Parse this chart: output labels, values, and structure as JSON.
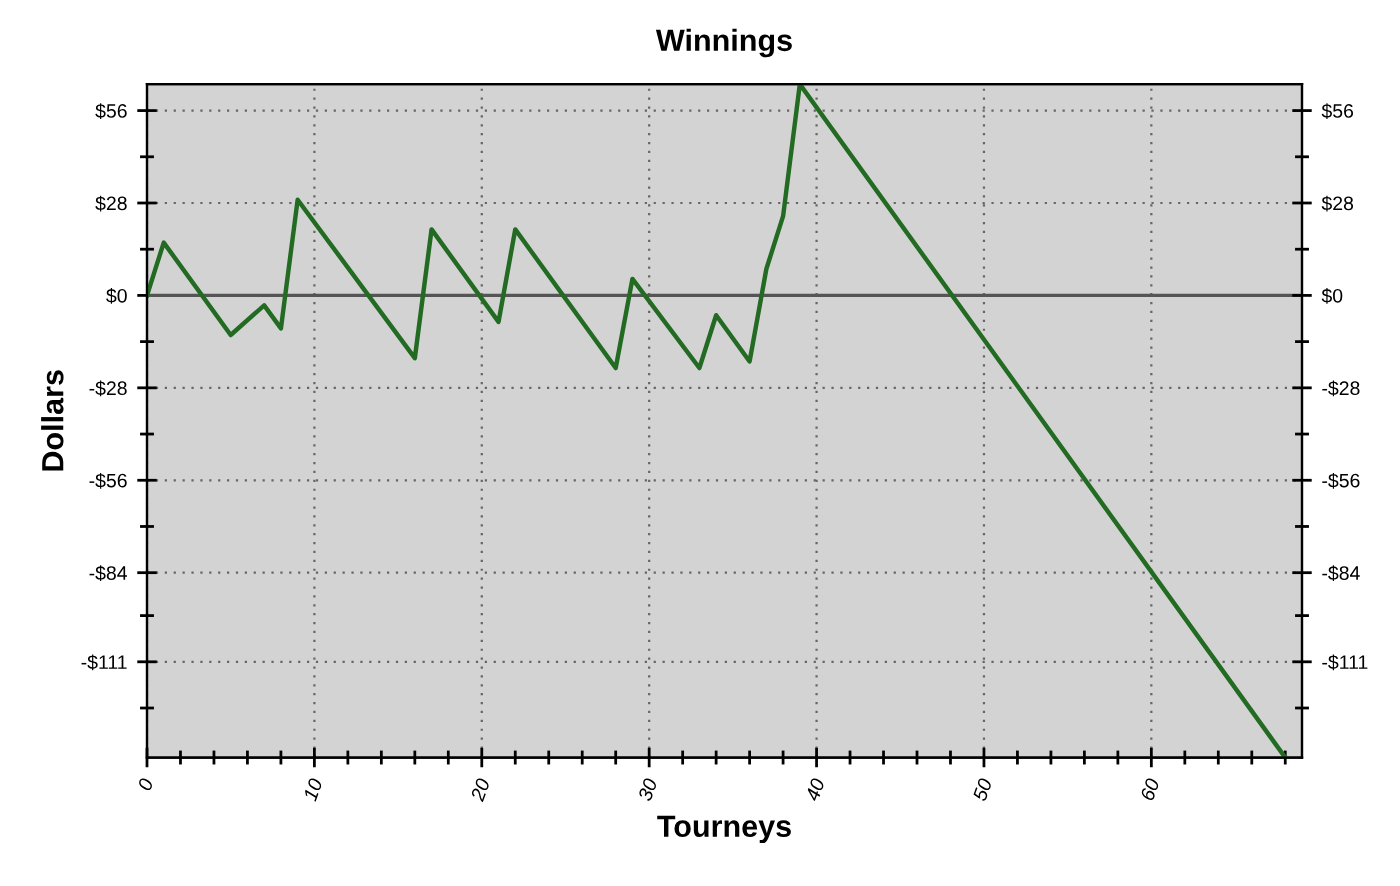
{
  "chart_data": {
    "type": "line",
    "title": "Winnings",
    "xlabel": "Tourneys",
    "ylabel": "Dollars",
    "x": [
      0,
      1,
      5,
      7,
      8,
      9,
      16,
      17,
      21,
      22,
      28,
      29,
      33,
      34,
      36,
      37,
      38,
      39,
      68
    ],
    "series": [
      {
        "color": "#236b23",
        "values": [
          0,
          16,
          -12,
          -3,
          -10,
          29,
          -19,
          20,
          -8,
          20,
          -22,
          5,
          -22,
          -6,
          -20,
          8,
          24,
          64,
          -140
        ]
      }
    ],
    "xlim": [
      0,
      69
    ],
    "xticks": [
      0,
      {
        "value": 2,
        "label": null
      },
      {
        "value": 4,
        "label": null
      },
      {
        "value": 6,
        "label": null
      },
      {
        "value": 8,
        "label": null
      },
      10,
      {
        "value": 12,
        "label": null
      },
      {
        "value": 14,
        "label": null
      },
      {
        "value": 16,
        "label": null
      },
      {
        "value": 18,
        "label": null
      },
      20,
      {
        "value": 22,
        "label": null
      },
      {
        "value": 24,
        "label": null
      },
      {
        "value": 26,
        "label": null
      },
      {
        "value": 28,
        "label": null
      },
      30,
      {
        "value": 32,
        "label": null
      },
      {
        "value": 34,
        "label": null
      },
      {
        "value": 36,
        "label": null
      },
      {
        "value": 38,
        "label": null
      },
      40,
      {
        "value": 42,
        "label": null
      },
      {
        "value": 44,
        "label": null
      },
      {
        "value": 46,
        "label": null
      },
      {
        "value": 48,
        "label": null
      },
      50,
      {
        "value": 52,
        "label": null
      },
      {
        "value": 54,
        "label": null
      },
      {
        "value": 56,
        "label": null
      },
      {
        "value": 58,
        "label": null
      },
      60,
      {
        "value": 62,
        "label": null
      },
      {
        "value": 64,
        "label": null
      },
      {
        "value": 66,
        "label": null
      },
      {
        "value": 68,
        "label": null
      }
    ],
    "ylim": [
      -140,
      64
    ],
    "yticks": [
      {
        "value": 56,
        "label": "$56"
      },
      {
        "value": 42,
        "label": null
      },
      {
        "value": 28,
        "label": "$28"
      },
      {
        "value": 14,
        "label": null
      },
      {
        "value": 0,
        "label": "$0"
      },
      {
        "value": -14,
        "label": null
      },
      {
        "value": -28,
        "label": "-$28"
      },
      {
        "value": -42,
        "label": null
      },
      {
        "value": -56,
        "label": "-$56"
      },
      {
        "value": -70,
        "label": null
      },
      {
        "value": -84,
        "label": "-$84"
      },
      {
        "value": -97,
        "label": null
      },
      {
        "value": -111,
        "label": "-$111"
      },
      {
        "value": -125,
        "label": null
      }
    ],
    "y2lim": [
      -140,
      64
    ],
    "y2ticks": [
      {
        "value": 56,
        "label": "$56"
      },
      {
        "value": 42,
        "label": null
      },
      {
        "value": 28,
        "label": "$28"
      },
      {
        "value": 14,
        "label": null
      },
      {
        "value": 0,
        "label": "$0"
      },
      {
        "value": -14,
        "label": null
      },
      {
        "value": -28,
        "label": "-$28"
      },
      {
        "value": -42,
        "label": null
      },
      {
        "value": -56,
        "label": "-$56"
      },
      {
        "value": -70,
        "label": null
      },
      {
        "value": -84,
        "label": "-$84"
      },
      {
        "value": -97,
        "label": null
      },
      {
        "value": -111,
        "label": "-$111"
      },
      {
        "value": -125,
        "label": null
      }
    ],
    "ref_lines": [
      {
        "axis": "y",
        "value": 0,
        "color": "#555555"
      }
    ],
    "grid": true,
    "marker": "none",
    "line_style": "solid"
  }
}
